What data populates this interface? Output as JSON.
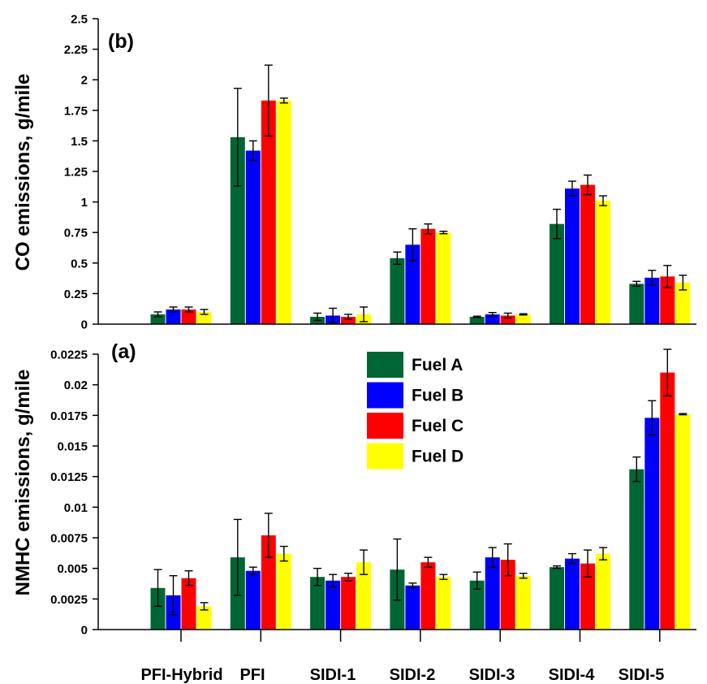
{
  "chart_data": [
    {
      "type": "bar",
      "panel_label": "(b)",
      "ylabel": "CO emissions, g/mile",
      "ylim": [
        0,
        2.5
      ],
      "yticks": [
        "0",
        "0.25",
        "0.5",
        "0.75",
        "1",
        "1.25",
        "1.5",
        "1.75",
        "2",
        "2.25",
        "2.5"
      ],
      "categories": [
        "PFI-Hybrid",
        "PFI",
        "SIDI-1",
        "SIDI-2",
        "SIDI-3",
        "SIDI-4",
        "SIDI-5"
      ],
      "series": [
        {
          "name": "Fuel A",
          "color": "#006633",
          "values": [
            0.08,
            1.53,
            0.06,
            0.54,
            0.06,
            0.82,
            0.33
          ],
          "errors": [
            0.02,
            0.4,
            0.03,
            0.05,
            0.005,
            0.12,
            0.02
          ]
        },
        {
          "name": "Fuel B",
          "color": "#0000ff",
          "values": [
            0.12,
            1.42,
            0.07,
            0.65,
            0.08,
            1.11,
            0.38
          ],
          "errors": [
            0.02,
            0.08,
            0.06,
            0.13,
            0.015,
            0.06,
            0.06
          ]
        },
        {
          "name": "Fuel C",
          "color": "#ff0000",
          "values": [
            0.12,
            1.83,
            0.06,
            0.78,
            0.07,
            1.14,
            0.39
          ],
          "errors": [
            0.02,
            0.29,
            0.02,
            0.04,
            0.02,
            0.08,
            0.09
          ]
        },
        {
          "name": "Fuel D",
          "color": "#ffff00",
          "values": [
            0.1,
            1.83,
            0.08,
            0.75,
            0.08,
            1.01,
            0.34
          ],
          "errors": [
            0.02,
            0.02,
            0.06,
            0.01,
            0.005,
            0.04,
            0.06
          ]
        }
      ]
    },
    {
      "type": "bar",
      "panel_label": "(a)",
      "ylabel": "NMHC emissions, g/mile",
      "ylim": [
        0,
        0.0225
      ],
      "yticks": [
        "0",
        "0.0025",
        "0.005",
        "0.0075",
        "0.01",
        "0.0125",
        "0.015",
        "0.0175",
        "0.02",
        "0.0225"
      ],
      "categories": [
        "PFI-Hybrid",
        "PFI",
        "SIDI-1",
        "SIDI-2",
        "SIDI-3",
        "SIDI-4",
        "SIDI-5"
      ],
      "series": [
        {
          "name": "Fuel A",
          "color": "#006633",
          "values": [
            0.0034,
            0.0059,
            0.0043,
            0.0049,
            0.004,
            0.0051,
            0.0131
          ],
          "errors": [
            0.0015,
            0.0031,
            0.0007,
            0.0025,
            0.0007,
            0.0001,
            0.001
          ]
        },
        {
          "name": "Fuel B",
          "color": "#0000ff",
          "values": [
            0.0028,
            0.0048,
            0.004,
            0.0036,
            0.0059,
            0.0058,
            0.0173
          ],
          "errors": [
            0.0016,
            0.0003,
            0.0005,
            0.0002,
            0.0008,
            0.0004,
            0.0014
          ]
        },
        {
          "name": "Fuel C",
          "color": "#ff0000",
          "values": [
            0.0042,
            0.0077,
            0.0043,
            0.0055,
            0.0057,
            0.0054,
            0.021
          ],
          "errors": [
            0.0006,
            0.0018,
            0.0003,
            0.0004,
            0.0013,
            0.0011,
            0.0019
          ]
        },
        {
          "name": "Fuel D",
          "color": "#ffff00",
          "values": [
            0.0019,
            0.0062,
            0.0055,
            0.0043,
            0.0044,
            0.0062,
            0.0176
          ],
          "errors": [
            0.0003,
            0.0006,
            0.001,
            0.0002,
            0.0002,
            0.0005,
            5e-05
          ]
        }
      ]
    }
  ],
  "legend": {
    "items": [
      {
        "label": "Fuel A",
        "color": "#006633"
      },
      {
        "label": "Fuel B",
        "color": "#0000ff"
      },
      {
        "label": "Fuel C",
        "color": "#ff0000"
      },
      {
        "label": "Fuel D",
        "color": "#ffff00"
      }
    ]
  }
}
